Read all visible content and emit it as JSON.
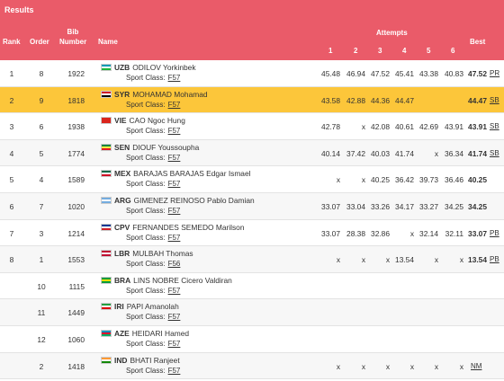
{
  "title": "Results",
  "headers": {
    "rank": "Rank",
    "order": "Order",
    "bib": "Bib Number",
    "name": "Name",
    "attempts": "Attempts",
    "a": [
      "1",
      "2",
      "3",
      "4",
      "5",
      "6"
    ],
    "best": "Best"
  },
  "sport_class_label": "Sport Class:",
  "rows": [
    {
      "rank": "1",
      "order": "8",
      "bib": "1922",
      "country": "UZB",
      "name": "ODILOV Yorkinbek",
      "class": "F57",
      "attempts": [
        "45.48",
        "46.94",
        "47.52",
        "45.41",
        "43.38",
        "40.83"
      ],
      "best": "47.52",
      "rec": "PR",
      "flag": [
        "#0099b5",
        "#ffffff",
        "#1eb53a"
      ]
    },
    {
      "rank": "2",
      "order": "9",
      "bib": "1818",
      "country": "SYR",
      "name": "MOHAMAD Mohamad",
      "class": "F57",
      "attempts": [
        "43.58",
        "42.88",
        "44.36",
        "44.47",
        "",
        ""
      ],
      "best": "44.47",
      "rec": "SB",
      "flag": [
        "#ce1126",
        "#ffffff",
        "#000000"
      ]
    },
    {
      "rank": "3",
      "order": "6",
      "bib": "1938",
      "country": "VIE",
      "name": "CAO Ngoc Hung",
      "class": "F57",
      "attempts": [
        "42.78",
        "x",
        "42.08",
        "40.61",
        "42.69",
        "43.91"
      ],
      "best": "43.91",
      "rec": "SB",
      "flag": [
        "#da251d",
        "#da251d",
        "#da251d"
      ]
    },
    {
      "rank": "4",
      "order": "5",
      "bib": "1774",
      "country": "SEN",
      "name": "DIOUF Youssoupha",
      "class": "F57",
      "attempts": [
        "40.14",
        "37.42",
        "40.03",
        "41.74",
        "x",
        "36.34"
      ],
      "best": "41.74",
      "rec": "SB",
      "flag": [
        "#00853f",
        "#fdef42",
        "#e31b23"
      ]
    },
    {
      "rank": "5",
      "order": "4",
      "bib": "1589",
      "country": "MEX",
      "name": "BARAJAS BARAJAS Edgar Ismael",
      "class": "F57",
      "attempts": [
        "x",
        "x",
        "40.25",
        "36.42",
        "39.73",
        "36.46"
      ],
      "best": "40.25",
      "rec": "",
      "flag": [
        "#006847",
        "#ffffff",
        "#ce1126"
      ]
    },
    {
      "rank": "6",
      "order": "7",
      "bib": "1020",
      "country": "ARG",
      "name": "GIMENEZ REINOSO Pablo Damian",
      "class": "F57",
      "attempts": [
        "33.07",
        "33.04",
        "33.26",
        "34.17",
        "33.27",
        "34.25"
      ],
      "best": "34.25",
      "rec": "",
      "flag": [
        "#74acdf",
        "#ffffff",
        "#74acdf"
      ]
    },
    {
      "rank": "7",
      "order": "3",
      "bib": "1214",
      "country": "CPV",
      "name": "FERNANDES SEMEDO Marilson",
      "class": "F57",
      "attempts": [
        "33.07",
        "28.38",
        "32.86",
        "x",
        "32.14",
        "32.11"
      ],
      "best": "33.07",
      "rec": "PB",
      "flag": [
        "#003893",
        "#ffffff",
        "#cf2027"
      ]
    },
    {
      "rank": "8",
      "order": "1",
      "bib": "1553",
      "country": "LBR",
      "name": "MULBAH Thomas",
      "class": "F56",
      "attempts": [
        "x",
        "x",
        "x",
        "13.54",
        "x",
        "x"
      ],
      "best": "13.54",
      "rec": "PB",
      "flag": [
        "#bf0a30",
        "#ffffff",
        "#bf0a30"
      ]
    },
    {
      "rank": "",
      "order": "10",
      "bib": "1115",
      "country": "BRA",
      "name": "LINS NOBRE Cicero Valdiran",
      "class": "F57",
      "attempts": [
        "",
        "",
        "",
        "",
        "",
        ""
      ],
      "best": "",
      "rec": "",
      "flag": [
        "#009c3b",
        "#ffdf00",
        "#009c3b"
      ]
    },
    {
      "rank": "",
      "order": "11",
      "bib": "1449",
      "country": "IRI",
      "name": "PAPI Amanolah",
      "class": "F57",
      "attempts": [
        "",
        "",
        "",
        "",
        "",
        ""
      ],
      "best": "",
      "rec": "",
      "flag": [
        "#239f40",
        "#ffffff",
        "#da0000"
      ]
    },
    {
      "rank": "",
      "order": "12",
      "bib": "1060",
      "country": "AZE",
      "name": "HEIDARI Hamed",
      "class": "F57",
      "attempts": [
        "",
        "",
        "",
        "",
        "",
        ""
      ],
      "best": "",
      "rec": "",
      "flag": [
        "#0092bc",
        "#e4002b",
        "#00af66"
      ]
    },
    {
      "rank": "",
      "order": "2",
      "bib": "1418",
      "country": "IND",
      "name": "BHATI Ranjeet",
      "class": "F57",
      "attempts": [
        "x",
        "x",
        "x",
        "x",
        "x",
        "x"
      ],
      "best": "",
      "rec": "NM",
      "flag": [
        "#ff9933",
        "#ffffff",
        "#138808"
      ]
    }
  ]
}
